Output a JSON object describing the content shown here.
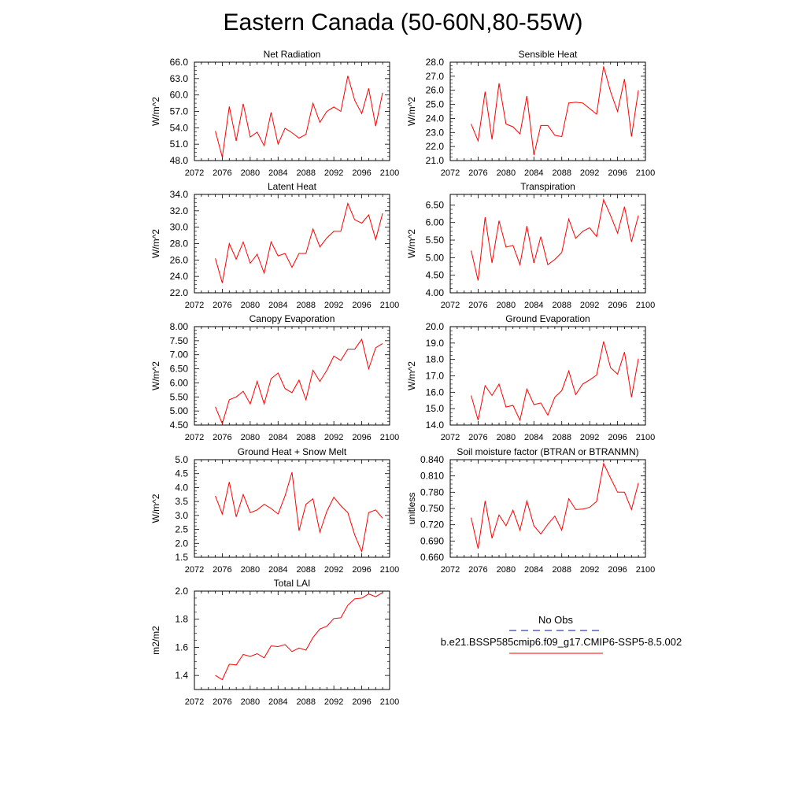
{
  "title": "Eastern Canada (50-60N,80-55W)",
  "colors": {
    "model": "#ff0000",
    "obs": "#3c3cb4",
    "axis": "#000000"
  },
  "legend": {
    "obs_label": "No Obs",
    "model_label": "b.e21.BSSP585cmip6.f09_g17.CMIP6-SSP5-8.5.002"
  },
  "chart_data": [
    {
      "type": "line",
      "title": "Net Radiation",
      "ylabel": "W/m^2",
      "xlim": [
        2072,
        2100
      ],
      "ylim": [
        48,
        66
      ],
      "xticks": [
        2072,
        2076,
        2080,
        2084,
        2088,
        2092,
        2096,
        2100
      ],
      "xtick_labels": [
        "2072",
        "2076",
        "2080",
        "2084",
        "2088",
        "2092",
        "2096",
        "2100"
      ],
      "yticks": [
        48,
        51,
        54,
        57,
        60,
        63,
        66
      ],
      "ytick_labels": [
        "48.0",
        "51.0",
        "54.0",
        "57.0",
        "60.0",
        "63.0",
        "66.0"
      ],
      "x": [
        2075,
        2076,
        2077,
        2078,
        2079,
        2080,
        2081,
        2082,
        2083,
        2084,
        2085,
        2086,
        2087,
        2088,
        2089,
        2090,
        2091,
        2092,
        2093,
        2094,
        2095,
        2096,
        2097,
        2098,
        2099
      ],
      "values": [
        53.4,
        48.6,
        57.9,
        51.6,
        58.4,
        52.3,
        53.2,
        50.7,
        56.8,
        51.0,
        53.9,
        53.1,
        52.1,
        52.8,
        58.5,
        55.0,
        57.0,
        57.8,
        57.0,
        63.5,
        59.0,
        56.6,
        61.2,
        54.3,
        60.4
      ]
    },
    {
      "type": "line",
      "title": "Sensible Heat",
      "ylabel": "W/m^2",
      "xlim": [
        2072,
        2100
      ],
      "ylim": [
        21,
        28
      ],
      "xticks": [
        2072,
        2076,
        2080,
        2084,
        2088,
        2092,
        2096,
        2100
      ],
      "xtick_labels": [
        "2072",
        "2076",
        "2080",
        "2084",
        "2088",
        "2092",
        "2096",
        "2100"
      ],
      "yticks": [
        21,
        22,
        23,
        24,
        25,
        26,
        27,
        28
      ],
      "ytick_labels": [
        "21.0",
        "22.0",
        "23.0",
        "24.0",
        "25.0",
        "26.0",
        "27.0",
        "28.0"
      ],
      "x": [
        2075,
        2076,
        2077,
        2078,
        2079,
        2080,
        2081,
        2082,
        2083,
        2084,
        2085,
        2086,
        2087,
        2088,
        2089,
        2090,
        2091,
        2092,
        2093,
        2094,
        2095,
        2096,
        2097,
        2098,
        2099
      ],
      "values": [
        23.6,
        22.4,
        25.9,
        22.5,
        26.5,
        23.6,
        23.4,
        22.9,
        25.6,
        21.4,
        23.5,
        23.5,
        22.8,
        22.7,
        25.1,
        25.15,
        25.1,
        24.7,
        24.3,
        27.7,
        25.9,
        24.5,
        26.8,
        22.7,
        26.0
      ]
    },
    {
      "type": "line",
      "title": "Latent Heat",
      "ylabel": "W/m^2",
      "xlim": [
        2072,
        2100
      ],
      "ylim": [
        22,
        34
      ],
      "xticks": [
        2072,
        2076,
        2080,
        2084,
        2088,
        2092,
        2096,
        2100
      ],
      "xtick_labels": [
        "2072",
        "2076",
        "2080",
        "2084",
        "2088",
        "2092",
        "2096",
        "2100"
      ],
      "yticks": [
        22,
        24,
        26,
        28,
        30,
        32,
        34
      ],
      "ytick_labels": [
        "22.0",
        "24.0",
        "26.0",
        "28.0",
        "30.0",
        "32.0",
        "34.0"
      ],
      "x": [
        2075,
        2076,
        2077,
        2078,
        2079,
        2080,
        2081,
        2082,
        2083,
        2084,
        2085,
        2086,
        2087,
        2088,
        2089,
        2090,
        2091,
        2092,
        2093,
        2094,
        2095,
        2096,
        2097,
        2098,
        2099
      ],
      "values": [
        26.2,
        23.2,
        28.0,
        26.1,
        28.2,
        25.6,
        26.7,
        24.4,
        28.2,
        26.5,
        26.8,
        25.1,
        26.8,
        26.8,
        29.8,
        27.6,
        28.7,
        29.5,
        29.5,
        32.9,
        30.9,
        30.5,
        31.5,
        28.5,
        31.7
      ]
    },
    {
      "type": "line",
      "title": "Transpiration",
      "ylabel": "W/m^2",
      "xlim": [
        2072,
        2100
      ],
      "ylim": [
        4.0,
        6.8
      ],
      "xticks": [
        2072,
        2076,
        2080,
        2084,
        2088,
        2092,
        2096,
        2100
      ],
      "xtick_labels": [
        "2072",
        "2076",
        "2080",
        "2084",
        "2088",
        "2092",
        "2096",
        "2100"
      ],
      "yticks": [
        4.0,
        4.5,
        5.0,
        5.5,
        6.0,
        6.5
      ],
      "ytick_labels": [
        "4.00",
        "4.50",
        "5.00",
        "5.50",
        "6.00",
        "6.50"
      ],
      "x": [
        2075,
        2076,
        2077,
        2078,
        2079,
        2080,
        2081,
        2082,
        2083,
        2084,
        2085,
        2086,
        2087,
        2088,
        2089,
        2090,
        2091,
        2092,
        2093,
        2094,
        2095,
        2096,
        2097,
        2098,
        2099
      ],
      "values": [
        5.2,
        4.35,
        6.15,
        4.85,
        6.05,
        5.3,
        5.35,
        4.8,
        5.9,
        4.85,
        5.6,
        4.8,
        4.95,
        5.15,
        6.1,
        5.55,
        5.75,
        5.85,
        5.6,
        6.65,
        6.2,
        5.7,
        6.45,
        5.45,
        6.2
      ]
    },
    {
      "type": "line",
      "title": "Canopy Evaporation",
      "ylabel": "W/m^2",
      "xlim": [
        2072,
        2100
      ],
      "ylim": [
        4.5,
        8.0
      ],
      "xticks": [
        2072,
        2076,
        2080,
        2084,
        2088,
        2092,
        2096,
        2100
      ],
      "xtick_labels": [
        "2072",
        "2076",
        "2080",
        "2084",
        "2088",
        "2092",
        "2096",
        "2100"
      ],
      "yticks": [
        4.5,
        5.0,
        5.5,
        6.0,
        6.5,
        7.0,
        7.5,
        8.0
      ],
      "ytick_labels": [
        "4.50",
        "5.00",
        "5.50",
        "6.00",
        "6.50",
        "7.00",
        "7.50",
        "8.00"
      ],
      "x": [
        2075,
        2076,
        2077,
        2078,
        2079,
        2080,
        2081,
        2082,
        2083,
        2084,
        2085,
        2086,
        2087,
        2088,
        2089,
        2090,
        2091,
        2092,
        2093,
        2094,
        2095,
        2096,
        2097,
        2098,
        2099
      ],
      "values": [
        5.15,
        4.55,
        5.4,
        5.5,
        5.7,
        5.25,
        6.05,
        5.25,
        6.15,
        6.35,
        5.8,
        5.65,
        6.1,
        5.4,
        6.45,
        6.05,
        6.45,
        6.95,
        6.8,
        7.2,
        7.2,
        7.55,
        6.5,
        7.25,
        7.4
      ]
    },
    {
      "type": "line",
      "title": "Ground Evaporation",
      "ylabel": "W/m^2",
      "xlim": [
        2072,
        2100
      ],
      "ylim": [
        14,
        20
      ],
      "xticks": [
        2072,
        2076,
        2080,
        2084,
        2088,
        2092,
        2096,
        2100
      ],
      "xtick_labels": [
        "2072",
        "2076",
        "2080",
        "2084",
        "2088",
        "2092",
        "2096",
        "2100"
      ],
      "yticks": [
        14,
        15,
        16,
        17,
        18,
        19,
        20
      ],
      "ytick_labels": [
        "14.0",
        "15.0",
        "16.0",
        "17.0",
        "18.0",
        "19.0",
        "20.0"
      ],
      "x": [
        2075,
        2076,
        2077,
        2078,
        2079,
        2080,
        2081,
        2082,
        2083,
        2084,
        2085,
        2086,
        2087,
        2088,
        2089,
        2090,
        2091,
        2092,
        2093,
        2094,
        2095,
        2096,
        2097,
        2098,
        2099
      ],
      "values": [
        15.8,
        14.3,
        16.4,
        15.8,
        16.5,
        15.1,
        15.2,
        14.3,
        16.2,
        15.25,
        15.35,
        14.6,
        15.7,
        16.1,
        17.3,
        15.85,
        16.5,
        16.75,
        17.05,
        19.1,
        17.5,
        17.1,
        18.45,
        15.7,
        18.05
      ]
    },
    {
      "type": "line",
      "title": "Ground Heat + Snow Melt",
      "ylabel": "W/m^2",
      "xlim": [
        2072,
        2100
      ],
      "ylim": [
        1.5,
        5.0
      ],
      "xticks": [
        2072,
        2076,
        2080,
        2084,
        2088,
        2092,
        2096,
        2100
      ],
      "xtick_labels": [
        "2072",
        "2076",
        "2080",
        "2084",
        "2088",
        "2092",
        "2096",
        "2100"
      ],
      "yticks": [
        1.5,
        2.0,
        2.5,
        3.0,
        3.5,
        4.0,
        4.5,
        5.0
      ],
      "ytick_labels": [
        "1.5",
        "2.0",
        "2.5",
        "3.0",
        "3.5",
        "4.0",
        "4.5",
        "5.0"
      ],
      "x": [
        2075,
        2076,
        2077,
        2078,
        2079,
        2080,
        2081,
        2082,
        2083,
        2084,
        2085,
        2086,
        2087,
        2088,
        2089,
        2090,
        2091,
        2092,
        2093,
        2094,
        2095,
        2096,
        2097,
        2098,
        2099
      ],
      "values": [
        3.7,
        3.05,
        4.2,
        2.95,
        3.75,
        3.1,
        3.2,
        3.4,
        3.25,
        3.05,
        3.7,
        4.55,
        2.45,
        3.4,
        3.6,
        2.4,
        3.15,
        3.65,
        3.35,
        3.1,
        2.3,
        1.7,
        3.1,
        3.2,
        2.9
      ]
    },
    {
      "type": "line",
      "title": "Soil moisture factor (BTRAN or BTRANMN)",
      "ylabel": "unitless",
      "xlim": [
        2072,
        2100
      ],
      "ylim": [
        0.66,
        0.84
      ],
      "xticks": [
        2072,
        2076,
        2080,
        2084,
        2088,
        2092,
        2096,
        2100
      ],
      "xtick_labels": [
        "2072",
        "2076",
        "2080",
        "2084",
        "2088",
        "2092",
        "2096",
        "2100"
      ],
      "yticks": [
        0.66,
        0.69,
        0.72,
        0.75,
        0.78,
        0.81,
        0.84
      ],
      "ytick_labels": [
        "0.660",
        "0.690",
        "0.720",
        "0.750",
        "0.780",
        "0.810",
        "0.840"
      ],
      "x": [
        2075,
        2076,
        2077,
        2078,
        2079,
        2080,
        2081,
        2082,
        2083,
        2084,
        2085,
        2086,
        2087,
        2088,
        2089,
        2090,
        2091,
        2092,
        2093,
        2094,
        2095,
        2096,
        2097,
        2098,
        2099
      ],
      "values": [
        0.733,
        0.676,
        0.764,
        0.695,
        0.738,
        0.718,
        0.747,
        0.71,
        0.764,
        0.718,
        0.703,
        0.721,
        0.736,
        0.71,
        0.768,
        0.748,
        0.749,
        0.752,
        0.763,
        0.833,
        0.806,
        0.78,
        0.78,
        0.748,
        0.797
      ]
    },
    {
      "type": "line",
      "title": "Total LAI",
      "ylabel": "m2/m2",
      "xlim": [
        2072,
        2100
      ],
      "ylim": [
        1.3,
        2.0
      ],
      "xticks": [
        2072,
        2076,
        2080,
        2084,
        2088,
        2092,
        2096,
        2100
      ],
      "xtick_labels": [
        "2072",
        "2076",
        "2080",
        "2084",
        "2088",
        "2092",
        "2096",
        "2100"
      ],
      "yticks": [
        1.4,
        1.6,
        1.8,
        2.0
      ],
      "ytick_labels": [
        "1.4",
        "1.6",
        "1.8",
        "2.0"
      ],
      "x": [
        2075,
        2076,
        2077,
        2078,
        2079,
        2080,
        2081,
        2082,
        2083,
        2084,
        2085,
        2086,
        2087,
        2088,
        2089,
        2090,
        2091,
        2092,
        2093,
        2094,
        2095,
        2096,
        2097,
        2098,
        2099
      ],
      "values": [
        1.4,
        1.37,
        1.48,
        1.475,
        1.55,
        1.535,
        1.555,
        1.525,
        1.61,
        1.605,
        1.62,
        1.57,
        1.595,
        1.58,
        1.67,
        1.73,
        1.75,
        1.805,
        1.81,
        1.9,
        1.945,
        1.95,
        1.98,
        1.96,
        1.99
      ]
    }
  ]
}
